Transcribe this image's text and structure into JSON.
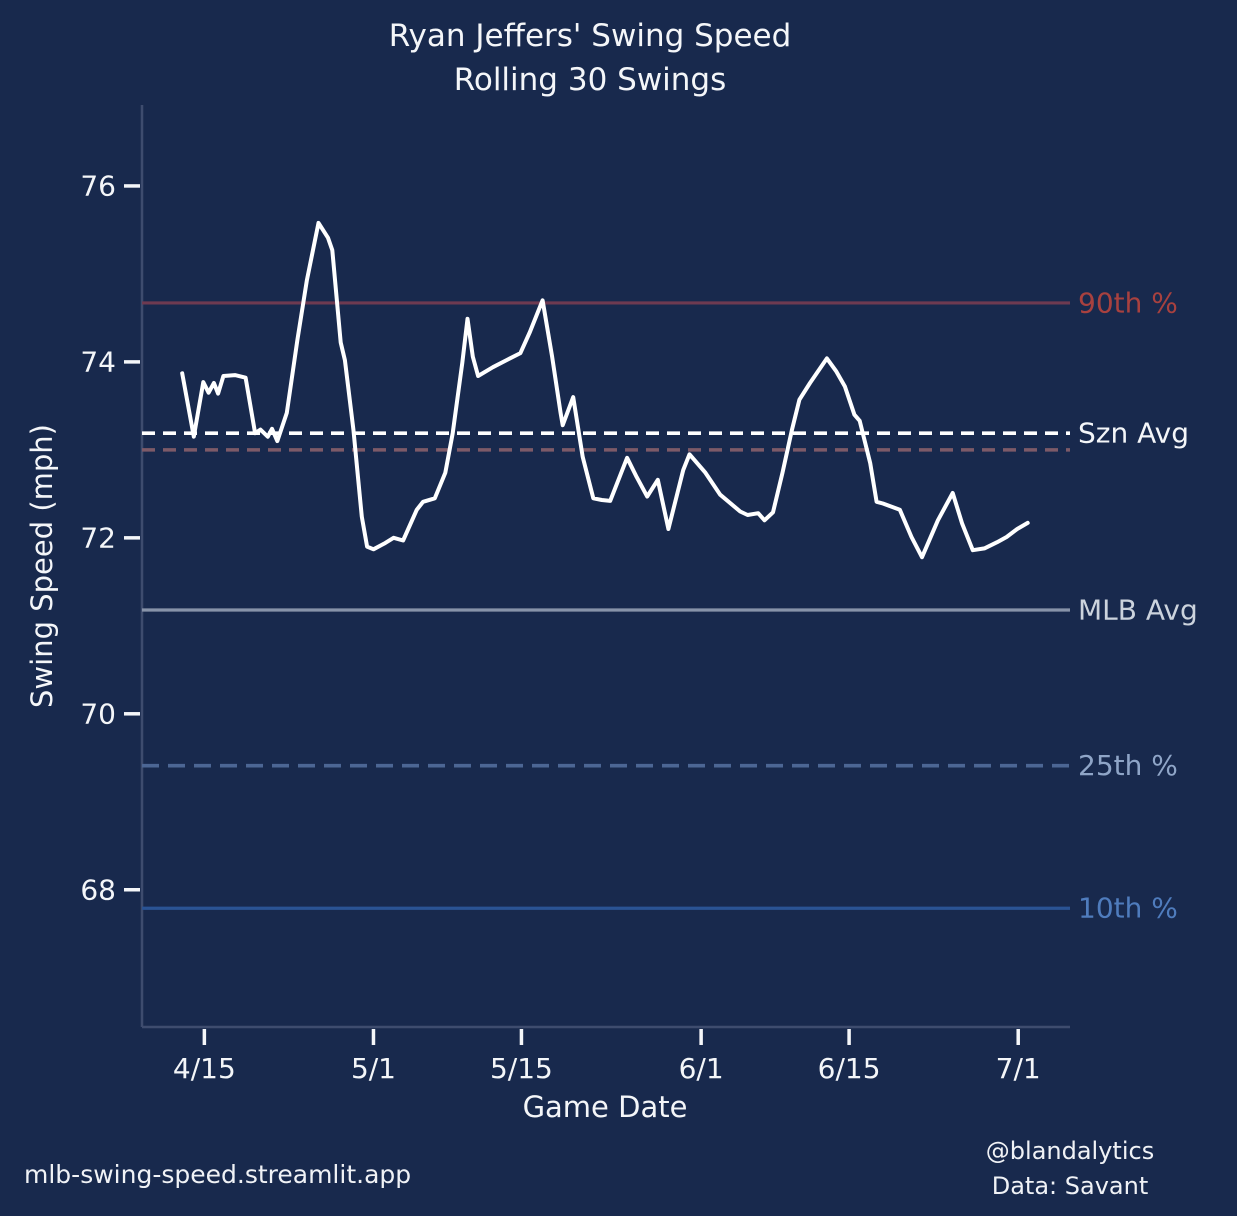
{
  "page": {
    "background": "#18294d",
    "text_color": "#f4f6f9"
  },
  "title": {
    "line1": "Ryan Jeffers' Swing Speed",
    "line2": "Rolling 30 Swings"
  },
  "footer": {
    "site": "mlb-swing-speed.streamlit.app",
    "credit_handle": "@blandalytics",
    "credit_source": "Data: Savant"
  },
  "chart_data": {
    "type": "line",
    "title": "Ryan Jeffers' Swing Speed — Rolling 30 Swings",
    "xlabel": "Game Date",
    "ylabel": "Swing Speed (mph)",
    "x_unit_note": "x values are days relative to 4/15",
    "x_domain": [
      -5.9,
      81.9
    ],
    "y_domain": [
      66.44,
      76.92
    ],
    "y_ticks": [
      68,
      70,
      72,
      74,
      76
    ],
    "x_ticks": [
      {
        "x": 0,
        "label": "4/15"
      },
      {
        "x": 16,
        "label": "5/1"
      },
      {
        "x": 30,
        "label": "5/15"
      },
      {
        "x": 47,
        "label": "6/1"
      },
      {
        "x": 61,
        "label": "6/15"
      },
      {
        "x": 77,
        "label": "7/1"
      }
    ],
    "grid": false,
    "legend_position": "right-edge-labels",
    "text_color": "#f4f6f9",
    "spine_color": "#3e4c6e",
    "reference_lines": [
      {
        "label": "90th %",
        "value": 74.67,
        "color": "#6e3a51",
        "label_color": "#a8413f",
        "dash": null,
        "width": 3.2
      },
      {
        "label": "Szn Avg",
        "value": 73.19,
        "color": "#ffffff",
        "label_color": "#f4f6f9",
        "dash": "13 8",
        "width": 3.6
      },
      {
        "label": "",
        "value": 73.0,
        "color": "#7d5a68",
        "label_color": "",
        "dash": "13 8",
        "width": 3.6
      },
      {
        "label": "MLB Avg",
        "value": 71.18,
        "color": "#8793a9",
        "label_color": "#ccd3dd",
        "dash": null,
        "width": 3.2
      },
      {
        "label": "25th %",
        "value": 69.41,
        "color": "#4c6694",
        "label_color": "#8fa5c7",
        "dash": "17 9",
        "width": 3.6
      },
      {
        "label": "10th %",
        "value": 67.79,
        "color": "#2a5394",
        "label_color": "#4f7cbd",
        "dash": null,
        "width": 3.2
      }
    ],
    "series": [
      {
        "name": "Rolling 30-swing speed",
        "color": "#ffffff",
        "width": 4,
        "points": [
          [
            -2.1,
            73.87
          ],
          [
            -1.0,
            73.15
          ],
          [
            -0.1,
            73.77
          ],
          [
            0.4,
            73.65
          ],
          [
            0.9,
            73.76
          ],
          [
            1.3,
            73.64
          ],
          [
            1.8,
            73.84
          ],
          [
            2.9,
            73.85
          ],
          [
            3.9,
            73.82
          ],
          [
            4.8,
            73.19
          ],
          [
            5.3,
            73.23
          ],
          [
            6.0,
            73.15
          ],
          [
            6.4,
            73.24
          ],
          [
            6.9,
            73.1
          ],
          [
            7.8,
            73.42
          ],
          [
            8.8,
            74.25
          ],
          [
            9.7,
            74.93
          ],
          [
            10.8,
            75.58
          ],
          [
            11.7,
            75.41
          ],
          [
            12.1,
            75.27
          ],
          [
            12.9,
            74.22
          ],
          [
            13.3,
            74.02
          ],
          [
            14.1,
            73.23
          ],
          [
            14.9,
            72.24
          ],
          [
            15.4,
            71.9
          ],
          [
            16.0,
            71.87
          ],
          [
            17.1,
            71.94
          ],
          [
            17.9,
            72.0
          ],
          [
            18.8,
            71.97
          ],
          [
            20.1,
            72.32
          ],
          [
            20.7,
            72.41
          ],
          [
            21.8,
            72.45
          ],
          [
            22.8,
            72.74
          ],
          [
            23.5,
            73.19
          ],
          [
            24.4,
            73.99
          ],
          [
            24.9,
            74.49
          ],
          [
            25.4,
            74.06
          ],
          [
            25.9,
            73.84
          ],
          [
            27.3,
            73.94
          ],
          [
            28.6,
            74.02
          ],
          [
            29.9,
            74.1
          ],
          [
            30.8,
            74.34
          ],
          [
            32.0,
            74.7
          ],
          [
            32.9,
            74.06
          ],
          [
            33.7,
            73.42
          ],
          [
            33.9,
            73.28
          ],
          [
            34.9,
            73.6
          ],
          [
            35.8,
            72.92
          ],
          [
            36.8,
            72.45
          ],
          [
            37.6,
            72.43
          ],
          [
            38.4,
            72.42
          ],
          [
            40.0,
            72.91
          ],
          [
            40.9,
            72.69
          ],
          [
            41.9,
            72.47
          ],
          [
            42.9,
            72.66
          ],
          [
            43.9,
            72.1
          ],
          [
            45.3,
            72.77
          ],
          [
            45.9,
            72.95
          ],
          [
            47.4,
            72.74
          ],
          [
            48.8,
            72.49
          ],
          [
            50.7,
            72.3
          ],
          [
            51.4,
            72.26
          ],
          [
            52.4,
            72.28
          ],
          [
            53.0,
            72.2
          ],
          [
            53.8,
            72.29
          ],
          [
            54.7,
            72.74
          ],
          [
            55.6,
            73.23
          ],
          [
            56.3,
            73.57
          ],
          [
            57.3,
            73.76
          ],
          [
            58.9,
            74.04
          ],
          [
            59.8,
            73.89
          ],
          [
            60.6,
            73.72
          ],
          [
            61.5,
            73.4
          ],
          [
            62.0,
            73.33
          ],
          [
            63.0,
            72.85
          ],
          [
            63.6,
            72.41
          ],
          [
            64.2,
            72.39
          ],
          [
            65.8,
            72.32
          ],
          [
            66.9,
            72.01
          ],
          [
            67.9,
            71.78
          ],
          [
            69.4,
            72.2
          ],
          [
            70.8,
            72.51
          ],
          [
            71.7,
            72.16
          ],
          [
            72.7,
            71.86
          ],
          [
            73.8,
            71.88
          ],
          [
            75.0,
            71.95
          ],
          [
            75.9,
            72.01
          ],
          [
            76.9,
            72.1
          ],
          [
            77.9,
            72.17
          ]
        ]
      }
    ]
  }
}
